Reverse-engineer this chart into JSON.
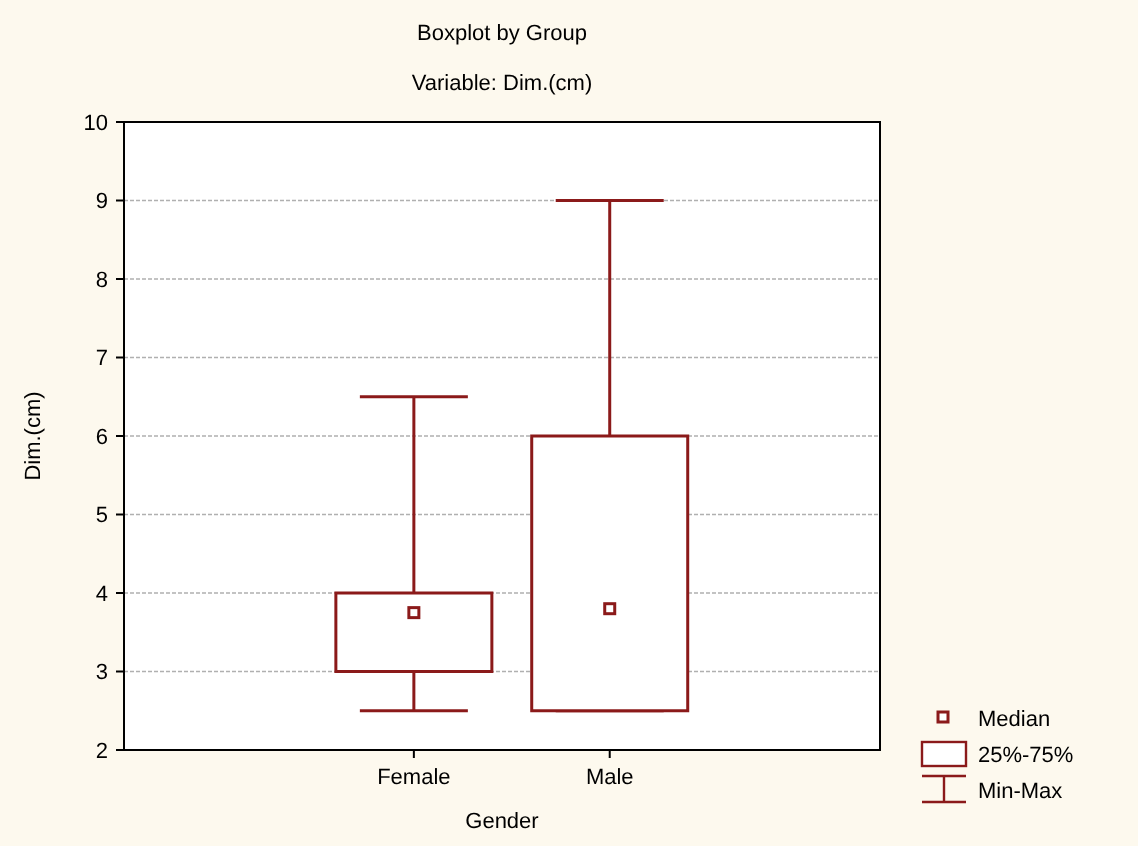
{
  "chart_data": {
    "type": "box",
    "title": "Boxplot by Group",
    "subtitle": "Variable: Dim.(cm)",
    "xlabel": "Gender",
    "ylabel": "Dim.(cm)",
    "categories": [
      "Female",
      "Male"
    ],
    "boxes": [
      {
        "low": 2.5,
        "q1": 3.0,
        "median": 3.75,
        "q3": 4.0,
        "high": 6.5
      },
      {
        "low": 2.5,
        "q1": 2.5,
        "median": 3.8,
        "q3": 6.0,
        "high": 9.0
      }
    ],
    "color": "#8b1a1a",
    "ylim": [
      2,
      10
    ],
    "yticks": [
      2,
      3,
      4,
      5,
      6,
      7,
      8,
      9,
      10
    ],
    "grid": "y",
    "annotations": [
      "Median",
      "25%-75%",
      "Min-Max"
    ]
  }
}
